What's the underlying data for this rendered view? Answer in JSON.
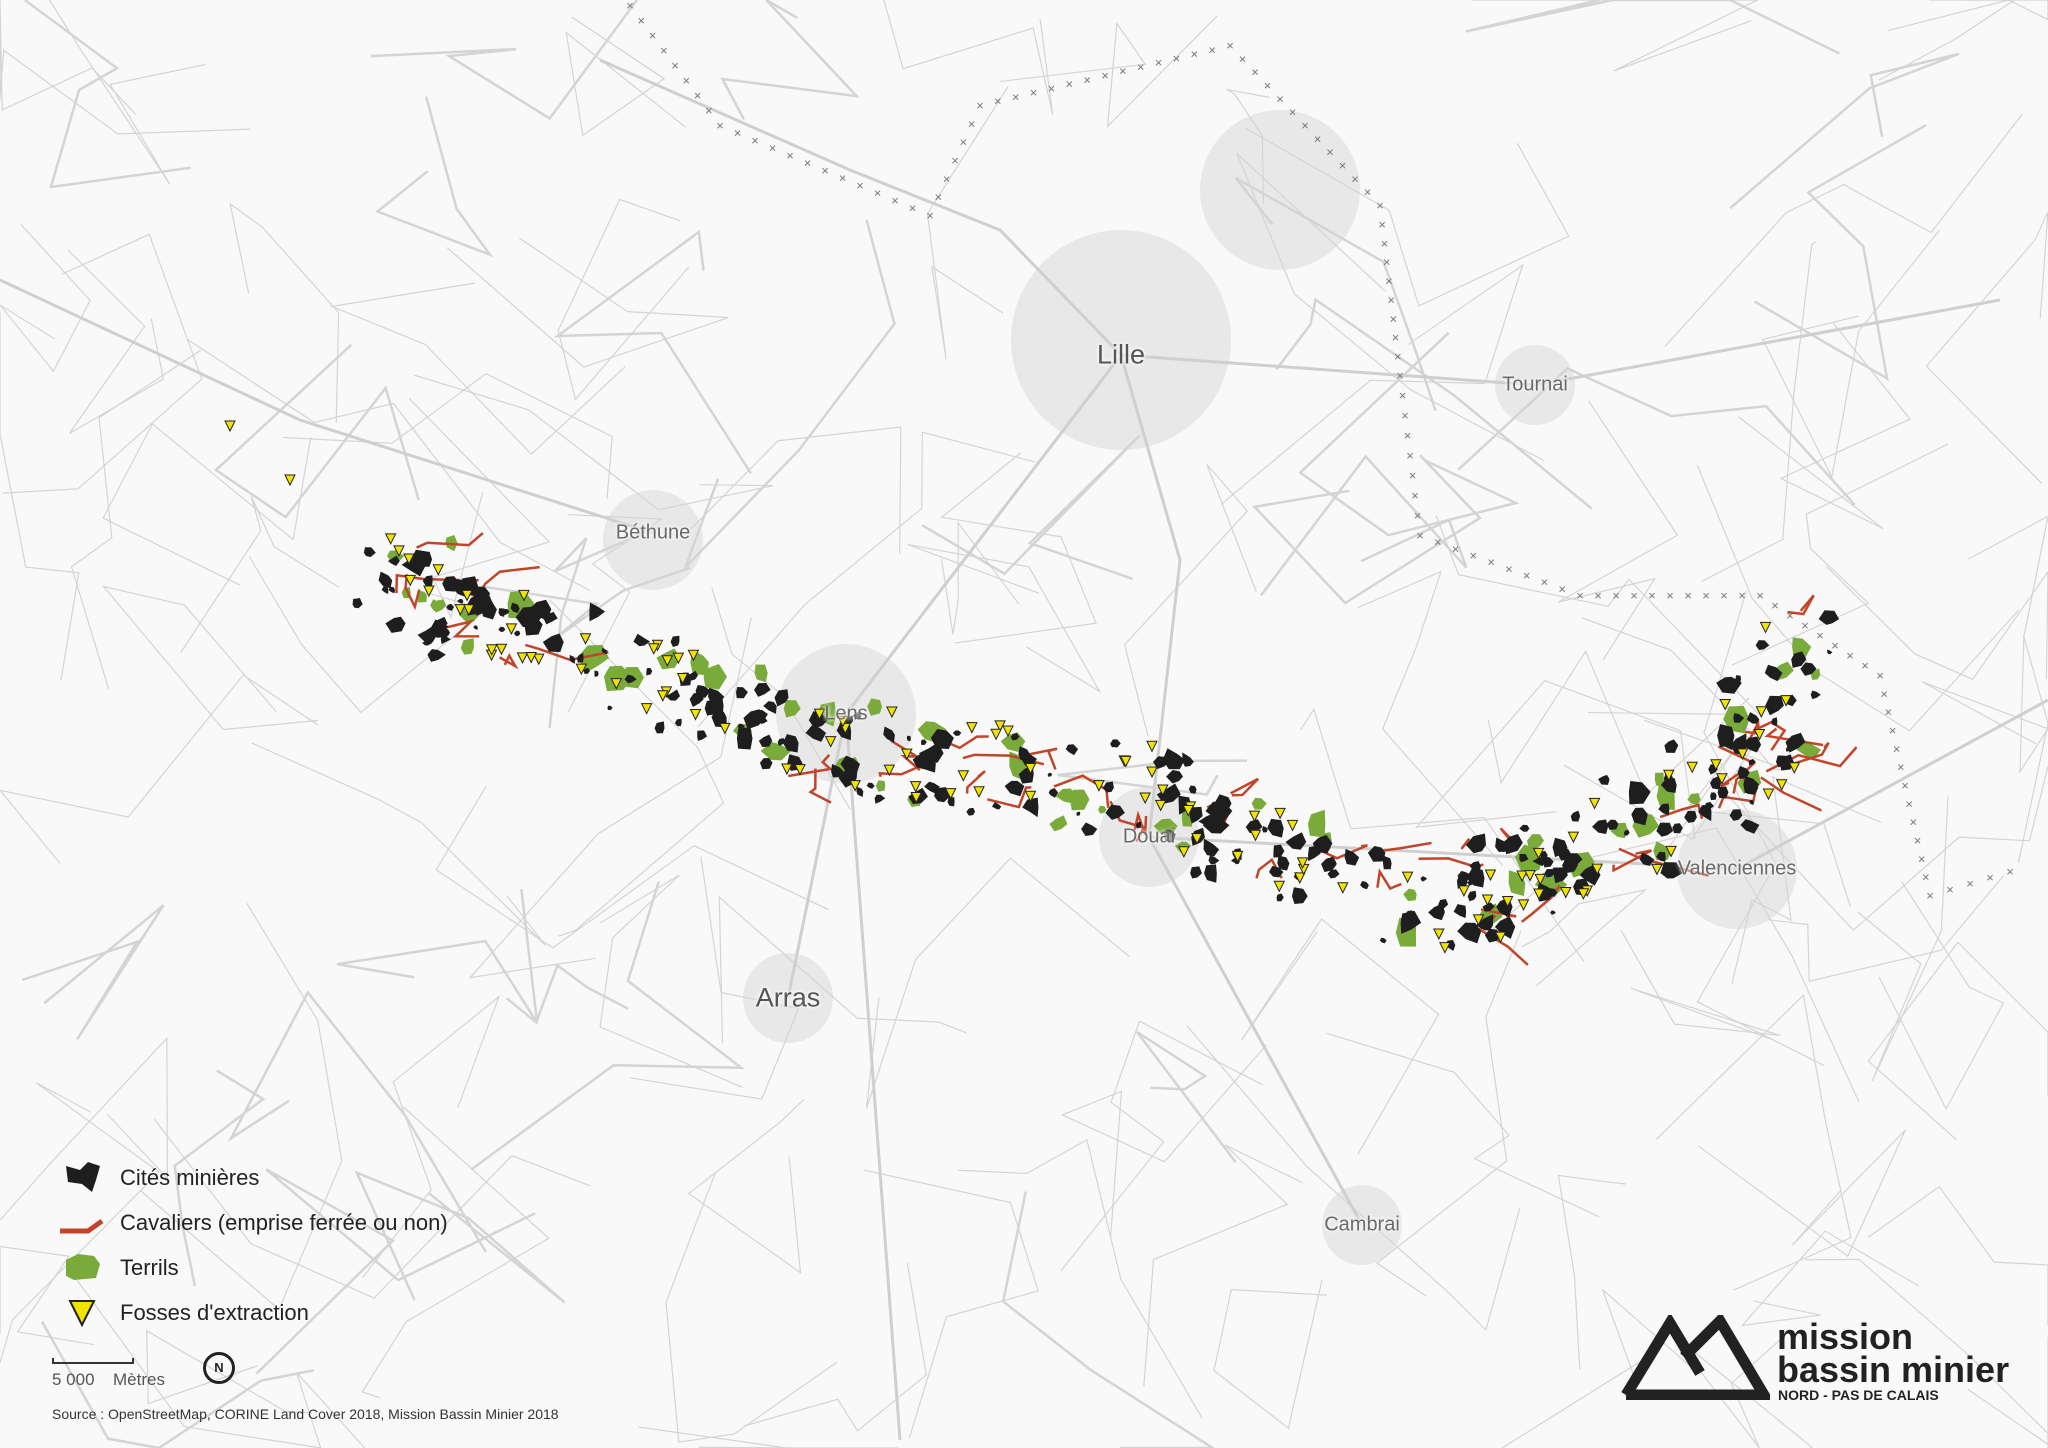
{
  "map": {
    "cities": [
      {
        "name": "Lille",
        "size": "big"
      },
      {
        "name": "Tournai",
        "size": "normal"
      },
      {
        "name": "Béthune",
        "size": "normal"
      },
      {
        "name": "Lens",
        "size": "normal"
      },
      {
        "name": "Douai",
        "size": "normal"
      },
      {
        "name": "Valenciennes",
        "size": "normal"
      },
      {
        "name": "Arras",
        "size": "big"
      },
      {
        "name": "Cambrai",
        "size": "normal"
      }
    ],
    "colors": {
      "background": "#f9f9f9",
      "roads": "#d4d4d4",
      "cites": "#1e1e1e",
      "cavaliers": "#c0452a",
      "terrils": "#7aaa3a",
      "fosses": "#f2e200",
      "border": "#777777"
    }
  },
  "legend": {
    "items": [
      {
        "label": "Cités minières",
        "icon": "black-polygon"
      },
      {
        "label": "Cavaliers (emprise ferrée ou non)",
        "icon": "red-line"
      },
      {
        "label": "Terrils",
        "icon": "green-polygon"
      },
      {
        "label": "Fosses d'extraction",
        "icon": "yellow-triangle"
      }
    ]
  },
  "scale": {
    "value": "5 000",
    "unit": "Mètres"
  },
  "north": "N",
  "source": "Source : OpenStreetMap, CORINE Land Cover 2018,  Mission Bassin Minier 2018",
  "logo": {
    "line1": "mission",
    "line2": "bassin minier",
    "line3": "NORD - PAS DE CALAIS"
  }
}
